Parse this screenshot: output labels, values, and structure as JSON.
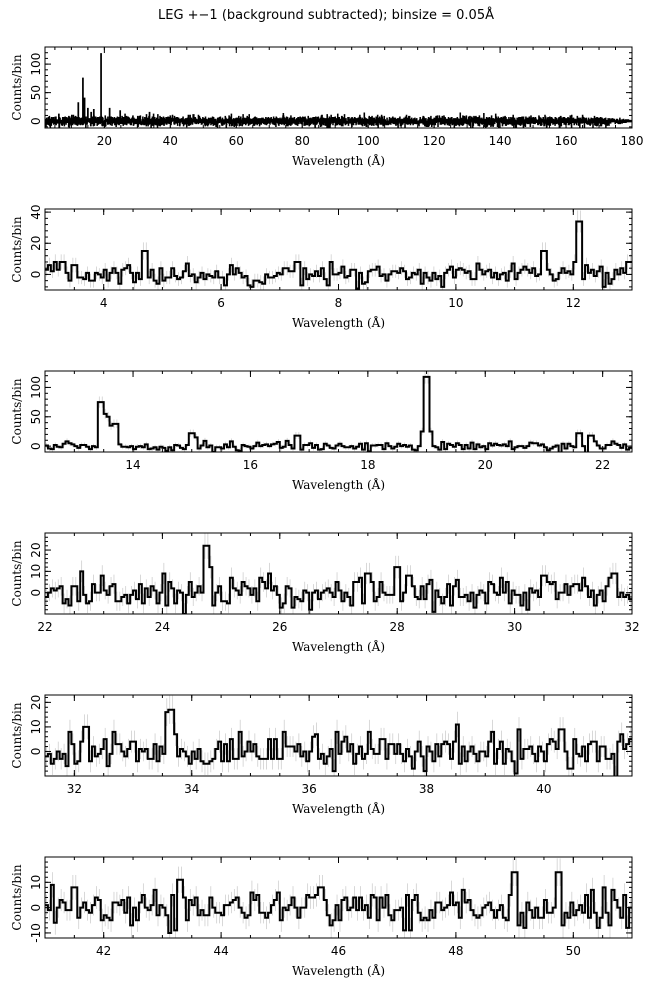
{
  "title": "LEG +−1 (background subtracted); binsize = 0.05Å",
  "chart_data": [
    {
      "type": "line",
      "xlabel": "Wavelength (Å)",
      "ylabel": "Counts/bin",
      "xlim": [
        2,
        180
      ],
      "ylim": [
        -12,
        130
      ],
      "xticks": [
        20,
        40,
        60,
        80,
        100,
        120,
        140,
        160,
        180
      ],
      "yticks": [
        0,
        50,
        100
      ],
      "peaks": [
        [
          6.2,
          12
        ],
        [
          12.1,
          32
        ],
        [
          13.5,
          75
        ],
        [
          14.0,
          40
        ],
        [
          15.0,
          22
        ],
        [
          16.0,
          15
        ],
        [
          16.8,
          20
        ],
        [
          19.0,
          118
        ],
        [
          21.6,
          22
        ],
        [
          24.8,
          18
        ],
        [
          33.7,
          15
        ],
        [
          46,
          10
        ],
        [
          86,
          10
        ]
      ],
      "noise_level": 6,
      "noise_sd": 4,
      "noise_decay_at": 170
    },
    {
      "type": "line",
      "xlabel": "Wavelength (Å)",
      "ylabel": "Counts/bin",
      "xlim": [
        3,
        13
      ],
      "ylim": [
        -10,
        42
      ],
      "xticks": [
        4,
        6,
        8,
        10,
        12
      ],
      "yticks": [
        0,
        20,
        40
      ],
      "peaks": [
        [
          3.3,
          8
        ],
        [
          3.5,
          6
        ],
        [
          4.7,
          15
        ],
        [
          7.3,
          8
        ],
        [
          11.5,
          15
        ],
        [
          12.05,
          8
        ],
        [
          12.1,
          34
        ],
        [
          12.95,
          8
        ]
      ],
      "noise_level": 0,
      "noise_sd": 3.5
    },
    {
      "type": "line",
      "xlabel": "Wavelength (Å)",
      "ylabel": "Counts/bin",
      "xlim": [
        12.5,
        22.5
      ],
      "ylim": [
        -10,
        128
      ],
      "xticks": [
        14,
        16,
        18,
        20,
        22
      ],
      "yticks": [
        0,
        50,
        100
      ],
      "peaks": [
        [
          13.45,
          75
        ],
        [
          13.5,
          55
        ],
        [
          13.55,
          50
        ],
        [
          13.6,
          35
        ],
        [
          13.7,
          38
        ],
        [
          15.0,
          22
        ],
        [
          15.05,
          15
        ],
        [
          16.8,
          18
        ],
        [
          18.95,
          25
        ],
        [
          19.0,
          118
        ],
        [
          19.05,
          25
        ],
        [
          21.6,
          22
        ],
        [
          21.8,
          18
        ]
      ],
      "noise_level": 0,
      "noise_sd": 4
    },
    {
      "type": "line",
      "xlabel": "Wavelength (Å)",
      "ylabel": "Counts/bin",
      "xlim": [
        22,
        32
      ],
      "ylim": [
        -10,
        28
      ],
      "xticks": [
        22,
        24,
        26,
        28,
        30,
        32
      ],
      "yticks": [
        0,
        10,
        20
      ],
      "peaks": [
        [
          24.75,
          22
        ],
        [
          24.8,
          12
        ],
        [
          27.5,
          9
        ],
        [
          28.0,
          12
        ],
        [
          28.2,
          8
        ],
        [
          30.5,
          8
        ],
        [
          31.7,
          9
        ]
      ],
      "noise_level": 0,
      "noise_sd": 4
    },
    {
      "type": "line",
      "xlabel": "Wavelength (Å)",
      "ylabel": "Counts/bin",
      "xlim": [
        31.5,
        41.5
      ],
      "ylim": [
        -10,
        23
      ],
      "xticks": [
        32,
        34,
        36,
        38,
        40
      ],
      "yticks": [
        0,
        10,
        20
      ],
      "peaks": [
        [
          32.2,
          10
        ],
        [
          33.6,
          16
        ],
        [
          33.65,
          17
        ],
        [
          40.3,
          9
        ]
      ],
      "noise_level": 0,
      "noise_sd": 4
    },
    {
      "type": "line",
      "xlabel": "Wavelength (Å)",
      "ylabel": "Counts/bin",
      "xlim": [
        41,
        51
      ],
      "ylim": [
        -12,
        20
      ],
      "xticks": [
        42,
        44,
        46,
        48,
        50
      ],
      "yticks": [
        -10,
        0,
        10
      ],
      "peaks": [
        [
          41.5,
          8
        ],
        [
          43.3,
          11
        ],
        [
          45.7,
          8
        ],
        [
          49.0,
          14
        ],
        [
          49.75,
          14
        ]
      ],
      "noise_level": 0,
      "noise_sd": 4
    }
  ]
}
